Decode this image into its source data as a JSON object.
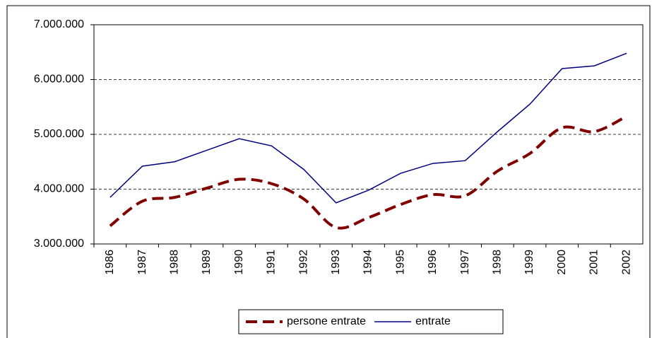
{
  "chart_data": {
    "type": "line",
    "categories": [
      "1986",
      "1987",
      "1988",
      "1989",
      "1990",
      "1991",
      "1992",
      "1993",
      "1994",
      "1995",
      "1996",
      "1997",
      "1998",
      "1999",
      "2000",
      "2001",
      "2002"
    ],
    "series": [
      {
        "name": "persone entrate",
        "color": "#800000",
        "dashed": true,
        "smooth": true,
        "values": [
          3330000,
          3780000,
          3850000,
          4020000,
          4180000,
          4100000,
          3820000,
          3300000,
          3480000,
          3720000,
          3900000,
          3880000,
          4330000,
          4650000,
          5120000,
          5050000,
          5330000
        ]
      },
      {
        "name": "entrate",
        "color": "#000080",
        "dashed": false,
        "smooth": false,
        "values": [
          3850000,
          4420000,
          4500000,
          4710000,
          4920000,
          4790000,
          4360000,
          3750000,
          3980000,
          4290000,
          4470000,
          4520000,
          5050000,
          5550000,
          6200000,
          6250000,
          6480000
        ]
      }
    ],
    "ylim": [
      3000000,
      7000000
    ],
    "yticks": [
      {
        "value": 3000000,
        "label": "3.000.000"
      },
      {
        "value": 4000000,
        "label": "4.000.000"
      },
      {
        "value": 5000000,
        "label": "5.000.000"
      },
      {
        "value": 6000000,
        "label": "6.000.000"
      },
      {
        "value": 7000000,
        "label": "7.000.000"
      }
    ],
    "grid": true,
    "legend": "bottom"
  }
}
